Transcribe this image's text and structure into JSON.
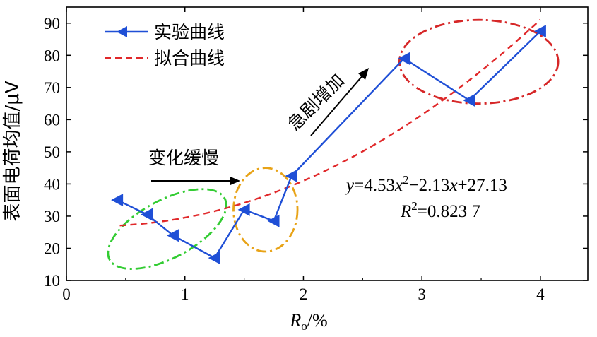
{
  "chart_data": {
    "type": "line",
    "xlabel_var": "R",
    "xlabel_sub": "o",
    "xlabel_unit": "/%",
    "ylabel": "表面电荷均值/μV",
    "xlim": [
      0,
      4.4
    ],
    "ylim": [
      10,
      95
    ],
    "xticks": [
      0,
      1,
      2,
      3,
      4
    ],
    "yticks": [
      10,
      20,
      30,
      40,
      50,
      60,
      70,
      80,
      90
    ],
    "grid": false,
    "legend_position": "top-left",
    "series": [
      {
        "name": "实验曲线",
        "style": "solid-triangle-markers",
        "color": "#1f4fd6",
        "x": [
          0.43,
          0.68,
          0.9,
          1.25,
          1.5,
          1.75,
          1.9,
          2.85,
          3.4,
          4.0
        ],
        "y": [
          35,
          30.5,
          24,
          17,
          32,
          28.5,
          42.5,
          79,
          66,
          87.5
        ]
      },
      {
        "name": "拟合曲线",
        "style": "dashed",
        "color": "#e0282a",
        "fit": {
          "a": 4.53,
          "b": -2.13,
          "c": 27.13
        },
        "x_range": [
          0.45,
          4.0
        ]
      }
    ],
    "annotations": {
      "slow": "变化缓慢",
      "sharp": "急剧增加",
      "equation": {
        "y": "y",
        "eq1": "=4.53",
        "x1": "x",
        "sup": "2",
        "eq2": "−2.13",
        "x2": "x",
        "eq3": "+27.13"
      },
      "r2": {
        "r": "R",
        "sup": "2",
        "value": "=0.823 7"
      }
    },
    "ellipses": [
      {
        "group": "green",
        "color": "#33cc33",
        "cx": 0.85,
        "cy": 26,
        "rx": 0.55,
        "ry": 9,
        "angle_data": -28
      },
      {
        "group": "orange",
        "color": "#e8a317",
        "cx": 1.68,
        "cy": 32,
        "rx": 0.27,
        "ry": 13,
        "angle_data": 0
      },
      {
        "group": "red",
        "color": "#d62728",
        "cx": 3.48,
        "cy": 78,
        "rx": 0.67,
        "ry": 13,
        "angle_data": 0
      }
    ]
  }
}
